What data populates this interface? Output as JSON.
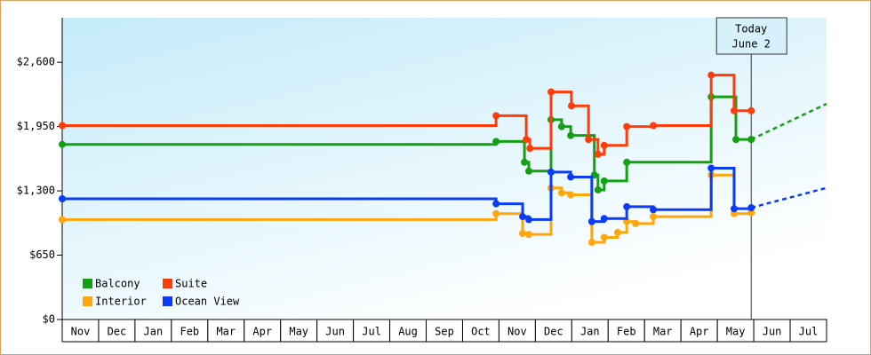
{
  "chart_data": {
    "type": "step",
    "categories": [
      "Nov",
      "Dec",
      "Jan",
      "Feb",
      "Mar",
      "Apr",
      "May",
      "Jun",
      "Jul",
      "Aug",
      "Sep",
      "Oct",
      "Nov",
      "Dec",
      "Jan",
      "Feb",
      "Mar",
      "Apr",
      "May",
      "Jun",
      "Jul"
    ],
    "xlim": [
      0,
      21
    ],
    "ylim": [
      0,
      3050
    ],
    "yticks": [
      {
        "value": 0,
        "label": "$0"
      },
      {
        "value": 650,
        "label": "$650"
      },
      {
        "value": 1300,
        "label": "$1,300"
      },
      {
        "value": 1950,
        "label": "$1,950"
      },
      {
        "value": 2600,
        "label": "$2,600"
      }
    ],
    "annotation": {
      "lines": [
        "Today",
        "June 2"
      ],
      "x": 18.93
    },
    "legend": "bottom-left",
    "series": [
      {
        "name": "Balcony",
        "color": "#13a013",
        "x": [
          0,
          11.92,
          12.7,
          12.82,
          13.43,
          13.72,
          13.97,
          14.62,
          14.72,
          14.89,
          15.51,
          17.83,
          18.51,
          18.93
        ],
        "values": [
          1770,
          1800,
          1590,
          1500,
          2020,
          1950,
          1860,
          1460,
          1310,
          1400,
          1590,
          2250,
          1820,
          1820
        ],
        "forecast": {
          "x": [
            18.93,
            21
          ],
          "values": [
            1820,
            2180
          ]
        }
      },
      {
        "name": "Suite",
        "color": "#ff3c0a",
        "x": [
          0,
          11.92,
          12.75,
          12.85,
          13.43,
          13.99,
          14.46,
          14.72,
          14.89,
          15.51,
          16.24,
          17.83,
          18.46,
          18.93
        ],
        "values": [
          1960,
          2060,
          1820,
          1730,
          2300,
          2160,
          1820,
          1670,
          1760,
          1950,
          1960,
          2470,
          2110,
          2110
        ]
      },
      {
        "name": "Interior",
        "color": "#ffa60d",
        "x": [
          0,
          11.92,
          12.65,
          12.82,
          13.43,
          13.72,
          13.97,
          14.55,
          14.89,
          15.26,
          15.51,
          15.75,
          16.24,
          17.83,
          18.46,
          18.93
        ],
        "values": [
          1010,
          1070,
          870,
          860,
          1330,
          1280,
          1260,
          780,
          830,
          880,
          990,
          970,
          1040,
          1460,
          1070,
          1080
        ]
      },
      {
        "name": "Ocean View",
        "color": "#0a3cf5",
        "x": [
          0,
          11.92,
          12.65,
          12.82,
          13.43,
          13.97,
          14.55,
          14.89,
          15.51,
          16.24,
          17.83,
          18.46,
          18.93
        ],
        "values": [
          1220,
          1170,
          1040,
          1010,
          1490,
          1440,
          990,
          1020,
          1140,
          1110,
          1530,
          1120,
          1130
        ],
        "forecast": {
          "x": [
            18.93,
            21
          ],
          "values": [
            1130,
            1330
          ]
        }
      }
    ]
  }
}
